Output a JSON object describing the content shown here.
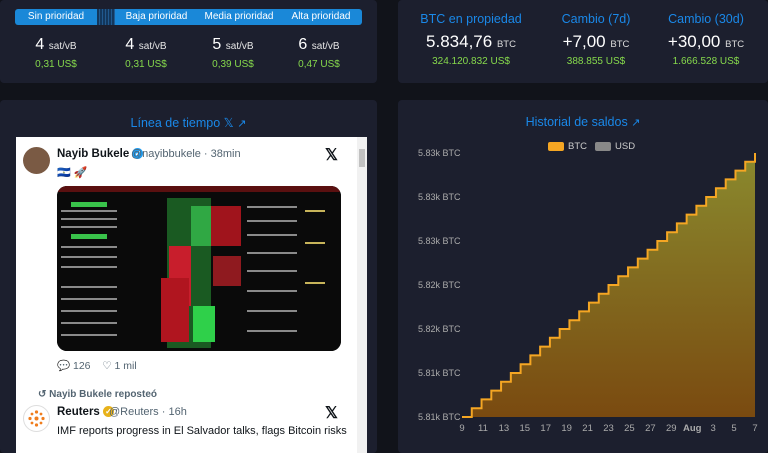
{
  "fees": {
    "segments": [
      "Sin prioridad",
      "Baja prioridad",
      "Media prioridad",
      "Alta prioridad"
    ],
    "items": [
      {
        "value": "4",
        "unit": "sat/vB",
        "usd": "0,31 US$"
      },
      {
        "value": "4",
        "unit": "sat/vB",
        "usd": "0,31 US$"
      },
      {
        "value": "5",
        "unit": "sat/vB",
        "usd": "0,39 US$"
      },
      {
        "value": "6",
        "unit": "sat/vB",
        "usd": "0,47 US$"
      }
    ]
  },
  "btc": {
    "holdings": {
      "label": "BTC en propiedad",
      "value": "5.834,76",
      "unit": "BTC",
      "usd": "324.120.832 US$"
    },
    "change7": {
      "label": "Cambio (7d)",
      "value": "+7,00",
      "unit": "BTC",
      "usd": "388.855 US$"
    },
    "change30": {
      "label": "Cambio (30d)",
      "value": "+30,00",
      "unit": "BTC",
      "usd": "1.666.528 US$"
    }
  },
  "timeline": {
    "title": "Línea de tiempo 𝕏",
    "tweet1": {
      "name": "Nayib Bukele",
      "handle": "@nayibbukele · 38min",
      "body": "🇸🇻 🚀",
      "replies": "126",
      "likes": "1 mil"
    },
    "repost_label": "Nayib Bukele reposteó",
    "tweet2": {
      "name": "Reuters",
      "handle": "@Reuters · 16h",
      "body": "IMF reports progress in El Salvador talks, flags Bitcoin risks"
    }
  },
  "history": {
    "title": "Historial de saldos",
    "legend": [
      "BTC",
      "USD"
    ]
  },
  "chart_data": {
    "type": "area",
    "title": "Historial de saldos",
    "series": [
      {
        "name": "BTC",
        "color": "#f5a623"
      }
    ],
    "x_ticks": [
      "9",
      "11",
      "13",
      "15",
      "17",
      "19",
      "21",
      "23",
      "25",
      "27",
      "29",
      "Aug",
      "3",
      "5",
      "7"
    ],
    "y_ticks": [
      "5.81k BTC",
      "5.81k BTC",
      "5.82k BTC",
      "5.82k BTC",
      "5.83k BTC",
      "5.83k BTC",
      "5.83k BTC"
    ],
    "ylim": [
      5804.76,
      5834.76
    ],
    "x": [
      "Jul 9",
      "Jul 10",
      "Jul 11",
      "Jul 12",
      "Jul 13",
      "Jul 14",
      "Jul 15",
      "Jul 16",
      "Jul 17",
      "Jul 18",
      "Jul 19",
      "Jul 20",
      "Jul 21",
      "Jul 22",
      "Jul 23",
      "Jul 24",
      "Jul 25",
      "Jul 26",
      "Jul 27",
      "Jul 28",
      "Jul 29",
      "Jul 30",
      "Jul 31",
      "Aug 1",
      "Aug 2",
      "Aug 3",
      "Aug 4",
      "Aug 5",
      "Aug 6",
      "Aug 7",
      "Aug 8"
    ],
    "values": [
      5804.76,
      5805.76,
      5806.76,
      5807.76,
      5808.76,
      5809.76,
      5810.76,
      5811.76,
      5812.76,
      5813.76,
      5814.76,
      5815.76,
      5816.76,
      5817.76,
      5818.76,
      5819.76,
      5820.76,
      5821.76,
      5822.76,
      5823.76,
      5824.76,
      5825.76,
      5826.76,
      5827.76,
      5828.76,
      5829.76,
      5830.76,
      5831.76,
      5832.76,
      5833.76,
      5834.76
    ],
    "grid": false,
    "legend_position": "top-center"
  }
}
